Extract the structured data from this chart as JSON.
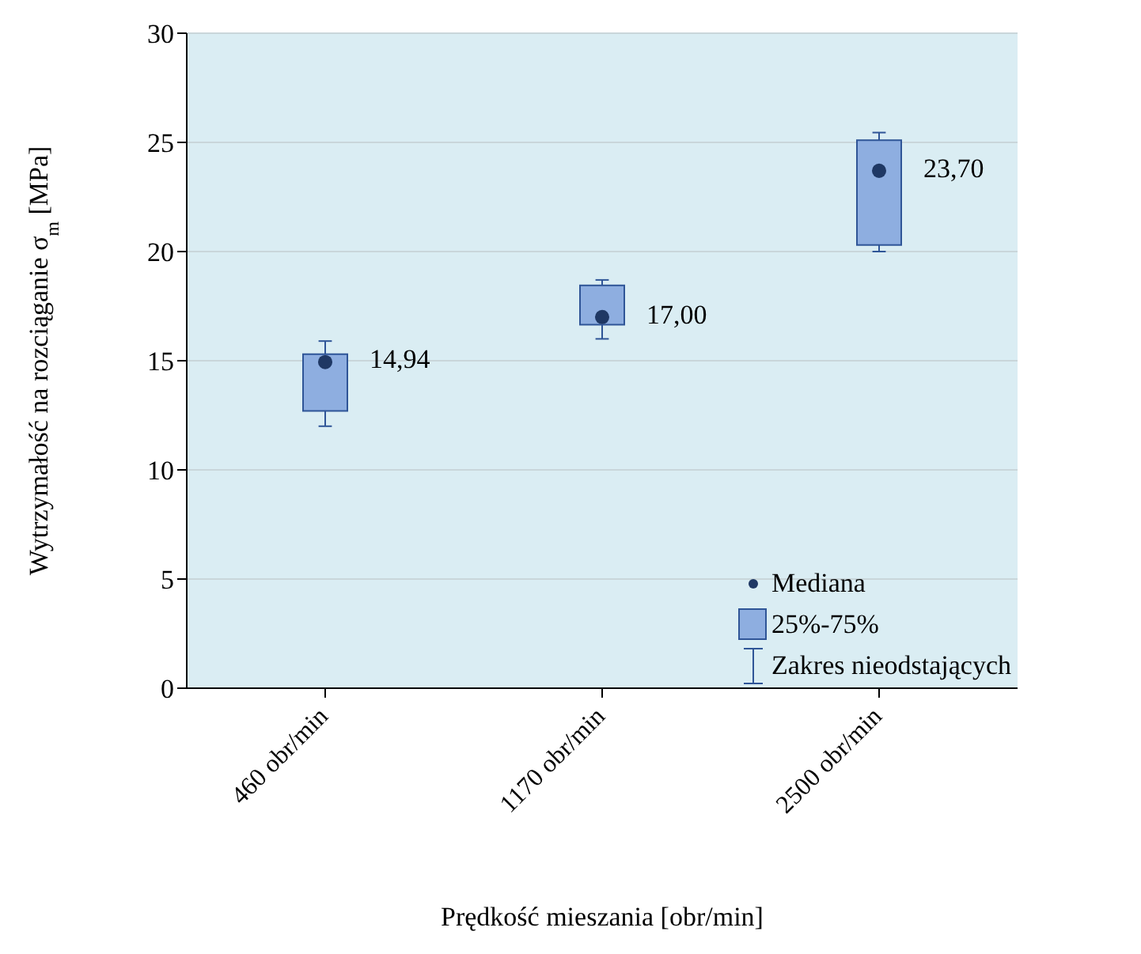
{
  "chart_data": {
    "type": "box",
    "xlabel": "Prędkość mieszania [obr/min]",
    "ylabel": "Wytrzymałość na rozciąganie σ$_{m}$ [MPa]",
    "categories": [
      "460 obr/min",
      "1170 obr/min",
      "2500 obr/min"
    ],
    "ylim": [
      0,
      30
    ],
    "yticks": [
      0,
      5,
      10,
      15,
      20,
      25,
      30
    ],
    "grid": "y",
    "legend": "bottom right",
    "series": [
      {
        "type": "box",
        "name": "25%-75%",
        "color": "#8eaee0",
        "boxes": [
          {
            "low": 12.0,
            "q1": 12.7,
            "q3": 15.3,
            "high": 15.9
          },
          {
            "low": 16.0,
            "q1": 16.65,
            "q3": 18.45,
            "high": 18.7
          },
          {
            "low": 20.0,
            "q1": 20.3,
            "q3": 25.1,
            "high": 25.45
          }
        ]
      },
      {
        "type": "scatter",
        "name": "Mediana",
        "color": "#1f3864",
        "marker": "circle",
        "x": [
          "460 obr/min",
          "1170 obr/min",
          "2500 obr/min"
        ],
        "values": [
          14.94,
          17.0,
          23.7
        ],
        "value_labels": [
          "14,94",
          "17,00",
          "23,70"
        ]
      }
    ],
    "annotations": [
      "Zakres nieodstających"
    ]
  }
}
